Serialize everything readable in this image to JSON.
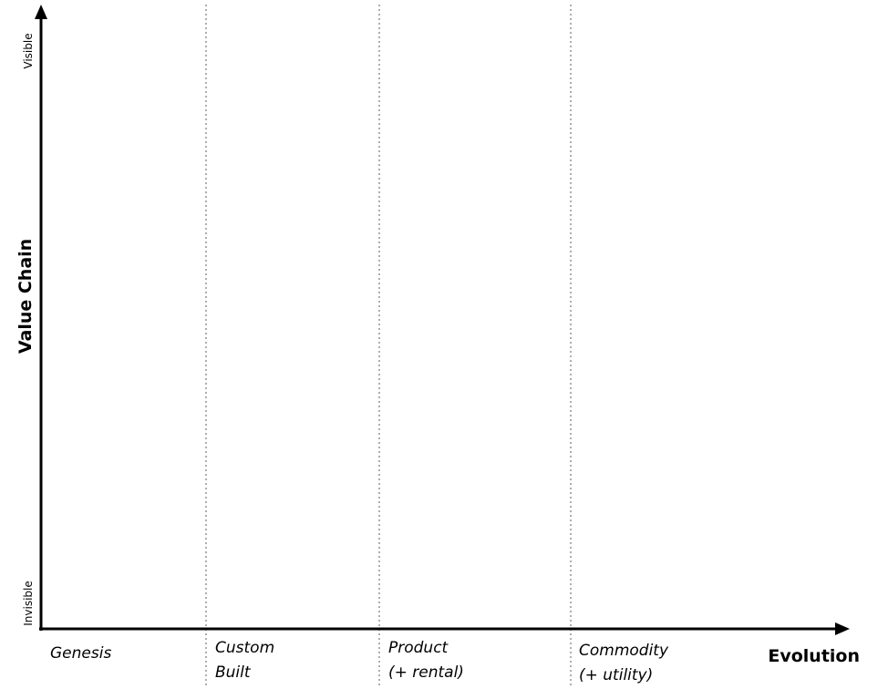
{
  "map": {
    "y_axis": {
      "title": "Value Chain",
      "top_label": "Visible",
      "bottom_label": "Invisible"
    },
    "x_axis": {
      "title": "Evolution",
      "stages": [
        {
          "line1": "Genesis",
          "line2": ""
        },
        {
          "line1": "Custom",
          "line2": "Built"
        },
        {
          "line1": "Product",
          "line2": "(+ rental)"
        },
        {
          "line1": "Commodity",
          "line2": "(+ utility)"
        }
      ]
    },
    "colors": {
      "axis": "#000000",
      "divider": "#9a9a9a"
    }
  }
}
